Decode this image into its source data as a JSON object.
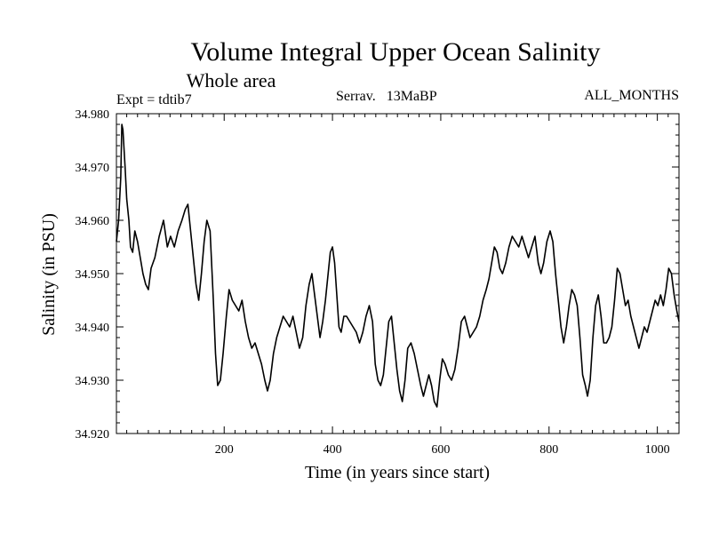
{
  "chart_data": {
    "type": "line",
    "title": "Volume Integral Upper Ocean Salinity",
    "subtitle": "Whole area",
    "meta": {
      "left": "Expt = tdtib7",
      "center": "Serrav.   13MaBP",
      "right": "ALL_MONTHS"
    },
    "xlabel": "Time (in years since start)",
    "ylabel": "Salinity (in PSU)",
    "xlim": [
      1,
      1040
    ],
    "ylim": [
      34.92,
      34.98
    ],
    "x_ticks": [
      200,
      400,
      600,
      800,
      1000
    ],
    "y_ticks": [
      "34.920",
      "34.930",
      "34.940",
      "34.950",
      "34.960",
      "34.970",
      "34.980"
    ],
    "line_color": "#000000",
    "series": [
      {
        "name": "salinity",
        "points": [
          [
            1,
            34.956
          ],
          [
            5,
            34.96
          ],
          [
            9,
            34.968
          ],
          [
            11,
            34.978
          ],
          [
            13,
            34.977
          ],
          [
            17,
            34.97
          ],
          [
            20,
            34.964
          ],
          [
            24,
            34.96
          ],
          [
            27,
            34.955
          ],
          [
            31,
            34.954
          ],
          [
            35,
            34.958
          ],
          [
            40,
            34.956
          ],
          [
            45,
            34.953
          ],
          [
            50,
            34.95
          ],
          [
            55,
            34.948
          ],
          [
            60,
            34.947
          ],
          [
            65,
            34.951
          ],
          [
            72,
            34.953
          ],
          [
            80,
            34.957
          ],
          [
            88,
            34.96
          ],
          [
            95,
            34.955
          ],
          [
            101,
            34.957
          ],
          [
            108,
            34.955
          ],
          [
            115,
            34.958
          ],
          [
            122,
            34.96
          ],
          [
            128,
            34.962
          ],
          [
            133,
            34.963
          ],
          [
            138,
            34.958
          ],
          [
            143,
            34.953
          ],
          [
            148,
            34.948
          ],
          [
            153,
            34.945
          ],
          [
            158,
            34.95
          ],
          [
            163,
            34.956
          ],
          [
            168,
            34.96
          ],
          [
            174,
            34.958
          ],
          [
            180,
            34.945
          ],
          [
            184,
            34.935
          ],
          [
            188,
            34.929
          ],
          [
            193,
            34.93
          ],
          [
            198,
            34.935
          ],
          [
            204,
            34.942
          ],
          [
            209,
            34.947
          ],
          [
            215,
            34.945
          ],
          [
            221,
            34.944
          ],
          [
            227,
            34.943
          ],
          [
            233,
            34.945
          ],
          [
            239,
            34.941
          ],
          [
            245,
            34.938
          ],
          [
            251,
            34.936
          ],
          [
            257,
            34.937
          ],
          [
            263,
            34.935
          ],
          [
            269,
            34.933
          ],
          [
            275,
            34.93
          ],
          [
            280,
            34.928
          ],
          [
            285,
            34.93
          ],
          [
            291,
            34.935
          ],
          [
            297,
            34.938
          ],
          [
            303,
            34.94
          ],
          [
            309,
            34.942
          ],
          [
            315,
            34.941
          ],
          [
            321,
            34.94
          ],
          [
            327,
            34.942
          ],
          [
            333,
            34.939
          ],
          [
            339,
            34.936
          ],
          [
            345,
            34.938
          ],
          [
            351,
            34.944
          ],
          [
            357,
            34.948
          ],
          [
            362,
            34.95
          ],
          [
            367,
            34.946
          ],
          [
            372,
            34.942
          ],
          [
            377,
            34.938
          ],
          [
            382,
            34.941
          ],
          [
            387,
            34.945
          ],
          [
            392,
            34.95
          ],
          [
            396,
            34.954
          ],
          [
            400,
            34.955
          ],
          [
            404,
            34.952
          ],
          [
            408,
            34.946
          ],
          [
            412,
            34.94
          ],
          [
            416,
            34.939
          ],
          [
            421,
            34.942
          ],
          [
            426,
            34.942
          ],
          [
            432,
            34.941
          ],
          [
            438,
            34.94
          ],
          [
            444,
            34.939
          ],
          [
            450,
            34.937
          ],
          [
            456,
            34.939
          ],
          [
            462,
            34.942
          ],
          [
            468,
            34.944
          ],
          [
            474,
            34.941
          ],
          [
            479,
            34.933
          ],
          [
            484,
            34.93
          ],
          [
            489,
            34.929
          ],
          [
            494,
            34.931
          ],
          [
            499,
            34.936
          ],
          [
            504,
            34.941
          ],
          [
            509,
            34.942
          ],
          [
            514,
            34.937
          ],
          [
            519,
            34.932
          ],
          [
            524,
            34.928
          ],
          [
            529,
            34.926
          ],
          [
            534,
            34.93
          ],
          [
            539,
            34.936
          ],
          [
            545,
            34.937
          ],
          [
            551,
            34.935
          ],
          [
            557,
            34.932
          ],
          [
            563,
            34.929
          ],
          [
            568,
            34.927
          ],
          [
            573,
            34.929
          ],
          [
            578,
            34.931
          ],
          [
            583,
            34.929
          ],
          [
            588,
            34.926
          ],
          [
            593,
            34.925
          ],
          [
            598,
            34.93
          ],
          [
            603,
            34.934
          ],
          [
            608,
            34.933
          ],
          [
            614,
            34.931
          ],
          [
            620,
            34.93
          ],
          [
            626,
            34.932
          ],
          [
            632,
            34.936
          ],
          [
            638,
            34.941
          ],
          [
            644,
            34.942
          ],
          [
            649,
            34.94
          ],
          [
            654,
            34.938
          ],
          [
            660,
            34.939
          ],
          [
            666,
            34.94
          ],
          [
            672,
            34.942
          ],
          [
            678,
            34.945
          ],
          [
            684,
            34.947
          ],
          [
            689,
            34.949
          ],
          [
            694,
            34.952
          ],
          [
            699,
            34.955
          ],
          [
            704,
            34.954
          ],
          [
            709,
            34.951
          ],
          [
            714,
            34.95
          ],
          [
            720,
            34.952
          ],
          [
            726,
            34.955
          ],
          [
            732,
            34.957
          ],
          [
            738,
            34.956
          ],
          [
            744,
            34.955
          ],
          [
            750,
            34.957
          ],
          [
            756,
            34.955
          ],
          [
            762,
            34.953
          ],
          [
            768,
            34.955
          ],
          [
            774,
            34.957
          ],
          [
            780,
            34.952
          ],
          [
            785,
            34.95
          ],
          [
            790,
            34.952
          ],
          [
            796,
            34.956
          ],
          [
            802,
            34.958
          ],
          [
            807,
            34.956
          ],
          [
            812,
            34.95
          ],
          [
            817,
            34.945
          ],
          [
            822,
            34.94
          ],
          [
            827,
            34.937
          ],
          [
            832,
            34.94
          ],
          [
            837,
            34.944
          ],
          [
            842,
            34.947
          ],
          [
            847,
            34.946
          ],
          [
            852,
            34.944
          ],
          [
            857,
            34.938
          ],
          [
            862,
            34.931
          ],
          [
            867,
            34.929
          ],
          [
            871,
            34.927
          ],
          [
            876,
            34.93
          ],
          [
            881,
            34.938
          ],
          [
            886,
            34.944
          ],
          [
            891,
            34.946
          ],
          [
            896,
            34.942
          ],
          [
            901,
            34.937
          ],
          [
            906,
            34.937
          ],
          [
            911,
            34.938
          ],
          [
            916,
            34.94
          ],
          [
            921,
            34.945
          ],
          [
            926,
            34.951
          ],
          [
            931,
            34.95
          ],
          [
            936,
            34.947
          ],
          [
            941,
            34.944
          ],
          [
            946,
            34.945
          ],
          [
            951,
            34.942
          ],
          [
            956,
            34.94
          ],
          [
            961,
            34.938
          ],
          [
            966,
            34.936
          ],
          [
            971,
            34.938
          ],
          [
            976,
            34.94
          ],
          [
            981,
            34.939
          ],
          [
            986,
            34.941
          ],
          [
            991,
            34.943
          ],
          [
            996,
            34.945
          ],
          [
            1001,
            34.944
          ],
          [
            1006,
            34.946
          ],
          [
            1011,
            34.944
          ],
          [
            1016,
            34.947
          ],
          [
            1021,
            34.951
          ],
          [
            1026,
            34.95
          ],
          [
            1031,
            34.946
          ],
          [
            1036,
            34.943
          ],
          [
            1040,
            34.941
          ]
        ]
      }
    ]
  }
}
